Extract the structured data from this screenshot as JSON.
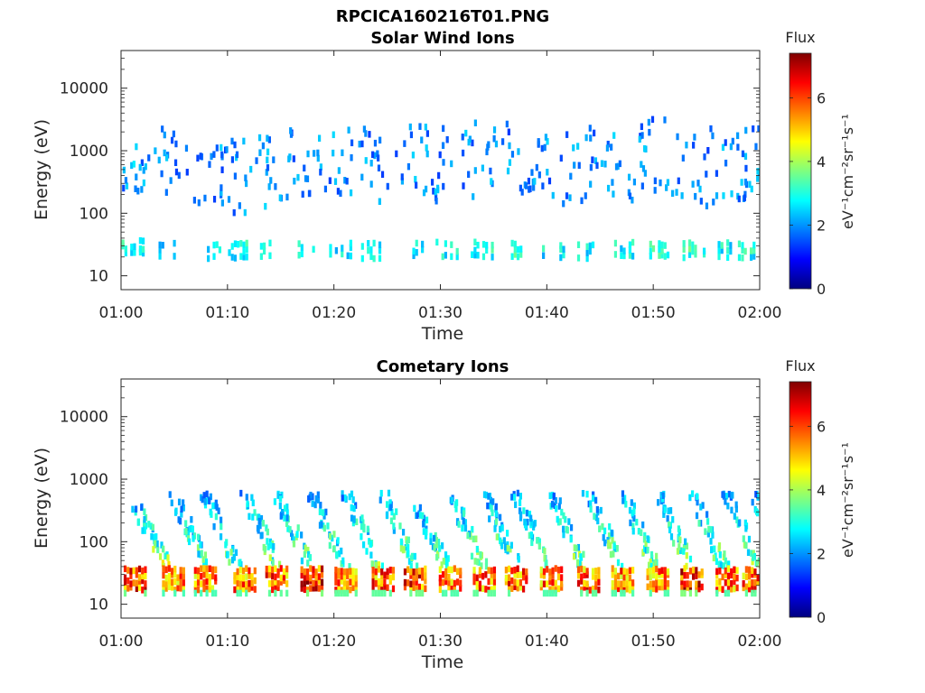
{
  "figure_title": "RPCICA160216T01.PNG",
  "colorscale": [
    "#00007f",
    "#0000ff",
    "#007fff",
    "#00ffff",
    "#7fff7f",
    "#ffff00",
    "#ff7f00",
    "#ff0000",
    "#7f0000"
  ],
  "chart_data": [
    {
      "type": "heatmap",
      "title": "Solar Wind Ions",
      "xlabel": "Time",
      "ylabel": "Energy (eV)",
      "xticks": [
        "01:00",
        "01:10",
        "01:20",
        "01:30",
        "01:40",
        "01:50",
        "02:00"
      ],
      "xlim": [
        "01:00",
        "02:00"
      ],
      "yscale": "log",
      "ylim": [
        6,
        40000
      ],
      "yticks": [
        10,
        100,
        1000,
        10000
      ],
      "ytick_labels": [
        "10",
        "100",
        "1000",
        "10000"
      ],
      "colorbar": {
        "title": "Flux",
        "unit": "eV⁻¹cm⁻²sr⁻¹s⁻¹",
        "range": [
          0,
          7.4
        ],
        "ticks": [
          "0",
          "2",
          "4",
          "6"
        ],
        "tick_values": [
          0,
          2,
          4,
          6
        ]
      },
      "bursts": [
        {
          "t": 1.0,
          "lowE": 28,
          "lowFlux": 3.0,
          "peakE": 500,
          "peakFlux": 2.4
        },
        {
          "t": 4.2,
          "lowE": 25,
          "lowFlux": 2.6,
          "peakE": 600,
          "peakFlux": 2.2
        },
        {
          "t": 8.2,
          "lowE": 25,
          "lowFlux": 2.7,
          "peakE": 500,
          "peakFlux": 2.2
        },
        {
          "t": 11.0,
          "lowE": 25,
          "lowFlux": 2.9,
          "peakE": 400,
          "peakFlux": 2.2
        },
        {
          "t": 14.0,
          "lowE": 25,
          "lowFlux": 2.7,
          "peakE": 500,
          "peakFlux": 2.2
        },
        {
          "t": 17.0,
          "lowE": 27,
          "lowFlux": 2.8,
          "peakE": 700,
          "peakFlux": 2.2
        },
        {
          "t": 20.5,
          "lowE": 27,
          "lowFlux": 2.8,
          "peakE": 600,
          "peakFlux": 2.2
        },
        {
          "t": 23.5,
          "lowE": 25,
          "lowFlux": 2.9,
          "peakE": 600,
          "peakFlux": 2.2
        },
        {
          "t": 27.5,
          "lowE": 25,
          "lowFlux": 2.9,
          "peakE": 800,
          "peakFlux": 2.2
        },
        {
          "t": 30.5,
          "lowE": 26,
          "lowFlux": 2.8,
          "peakE": 600,
          "peakFlux": 2.2
        },
        {
          "t": 33.8,
          "lowE": 26,
          "lowFlux": 2.9,
          "peakE": 700,
          "peakFlux": 2.2
        },
        {
          "t": 37.3,
          "lowE": 26,
          "lowFlux": 3.0,
          "peakE": 700,
          "peakFlux": 2.2
        },
        {
          "t": 40.5,
          "lowE": 26,
          "lowFlux": 2.8,
          "peakE": 500,
          "peakFlux": 2.2
        },
        {
          "t": 43.8,
          "lowE": 24,
          "lowFlux": 2.7,
          "peakE": 600,
          "peakFlux": 2.2
        },
        {
          "t": 47.0,
          "lowE": 26,
          "lowFlux": 2.9,
          "peakE": 600,
          "peakFlux": 2.2
        },
        {
          "t": 50.3,
          "lowE": 26,
          "lowFlux": 3.0,
          "peakE": 800,
          "peakFlux": 2.2
        },
        {
          "t": 53.7,
          "lowE": 26,
          "lowFlux": 3.1,
          "peakE": 500,
          "peakFlux": 2.2
        },
        {
          "t": 57.0,
          "lowE": 26,
          "lowFlux": 2.9,
          "peakE": 600,
          "peakFlux": 2.2
        },
        {
          "t": 59.2,
          "lowE": 25,
          "lowFlux": 2.9,
          "peakE": 600,
          "peakFlux": 2.2
        }
      ]
    },
    {
      "type": "heatmap",
      "title": "Cometary Ions",
      "xlabel": "Time",
      "ylabel": "Energy (eV)",
      "xticks": [
        "01:00",
        "01:10",
        "01:20",
        "01:30",
        "01:40",
        "01:50",
        "02:00"
      ],
      "xlim": [
        "01:00",
        "02:00"
      ],
      "yscale": "log",
      "ylim": [
        6,
        40000
      ],
      "yticks": [
        10,
        100,
        1000,
        10000
      ],
      "ytick_labels": [
        "10",
        "100",
        "1000",
        "10000"
      ],
      "colorbar": {
        "title": "Flux",
        "unit": "eV⁻¹cm⁻²sr⁻¹s⁻¹",
        "range": [
          0,
          7.4
        ],
        "ticks": [
          "0",
          "2",
          "4",
          "6"
        ],
        "tick_values": [
          0,
          2,
          4,
          6
        ]
      },
      "bursts": [
        {
          "t": 1.2,
          "lowE": 25,
          "lowFlux": 6.0,
          "peakE": 200,
          "peakFlux": 3.5
        },
        {
          "t": 4.8,
          "lowE": 25,
          "lowFlux": 5.5,
          "peakE": 300,
          "peakFlux": 3.0
        },
        {
          "t": 7.8,
          "lowE": 25,
          "lowFlux": 5.5,
          "peakE": 300,
          "peakFlux": 3.0
        },
        {
          "t": 11.5,
          "lowE": 25,
          "lowFlux": 5.6,
          "peakE": 300,
          "peakFlux": 3.2
        },
        {
          "t": 14.5,
          "lowE": 25,
          "lowFlux": 5.8,
          "peakE": 300,
          "peakFlux": 3.2
        },
        {
          "t": 17.8,
          "lowE": 25,
          "lowFlux": 6.2,
          "peakE": 300,
          "peakFlux": 3.2
        },
        {
          "t": 21.0,
          "lowE": 25,
          "lowFlux": 5.8,
          "peakE": 300,
          "peakFlux": 3.2
        },
        {
          "t": 24.5,
          "lowE": 25,
          "lowFlux": 5.8,
          "peakE": 300,
          "peakFlux": 3.2
        },
        {
          "t": 27.5,
          "lowE": 25,
          "lowFlux": 6.0,
          "peakE": 200,
          "peakFlux": 3.2
        },
        {
          "t": 30.8,
          "lowE": 25,
          "lowFlux": 5.6,
          "peakE": 300,
          "peakFlux": 3.2
        },
        {
          "t": 34.0,
          "lowE": 25,
          "lowFlux": 5.8,
          "peakE": 300,
          "peakFlux": 3.2
        },
        {
          "t": 37.0,
          "lowE": 25,
          "lowFlux": 5.8,
          "peakE": 300,
          "peakFlux": 3.2
        },
        {
          "t": 40.3,
          "lowE": 25,
          "lowFlux": 5.6,
          "peakE": 300,
          "peakFlux": 3.2
        },
        {
          "t": 43.8,
          "lowE": 25,
          "lowFlux": 5.8,
          "peakE": 300,
          "peakFlux": 3.2
        },
        {
          "t": 47.0,
          "lowE": 25,
          "lowFlux": 5.6,
          "peakE": 300,
          "peakFlux": 3.2
        },
        {
          "t": 50.3,
          "lowE": 25,
          "lowFlux": 5.6,
          "peakE": 300,
          "peakFlux": 3.2
        },
        {
          "t": 53.5,
          "lowE": 25,
          "lowFlux": 6.2,
          "peakE": 300,
          "peakFlux": 3.2
        },
        {
          "t": 56.8,
          "lowE": 25,
          "lowFlux": 5.6,
          "peakE": 300,
          "peakFlux": 3.2
        },
        {
          "t": 59.3,
          "lowE": 25,
          "lowFlux": 5.8,
          "peakE": 300,
          "peakFlux": 3.2
        }
      ]
    }
  ]
}
